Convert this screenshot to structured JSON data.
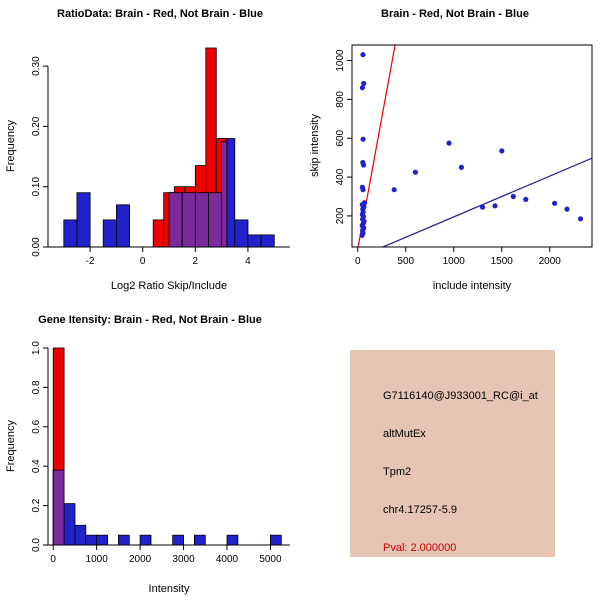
{
  "figure": {
    "background": "#ffffff"
  },
  "colors": {
    "brain": "#EE0000",
    "not_brain": "#2222CC",
    "overlap": "#7B2A9B",
    "fit_blue": "#1A1A8C"
  },
  "chart_data": [
    {
      "type": "histogram",
      "title": "RatioData: Brain - Red, Not Brain - Blue",
      "xlabel": "Log2 Ratio Skip/Include",
      "ylabel": "Frequency",
      "xlim": [
        -3.6,
        5.6
      ],
      "ylim": [
        0,
        0.335
      ],
      "xticks": [
        -2,
        0,
        2,
        4
      ],
      "yticks": [
        0,
        0.1,
        0.2,
        0.3
      ],
      "ytick_labels": [
        "0.00",
        "0.10",
        "0.20",
        "0.30"
      ],
      "series": [
        {
          "name": "not-brain-hist",
          "color": "#2222CC",
          "bin_start": -3.0,
          "bin_width": 0.5,
          "heights": [
            0.045,
            0.09,
            0,
            0.045,
            0.07,
            0,
            0,
            0,
            0.09,
            0.09,
            0.09,
            0.09,
            0.18,
            0.045,
            0.02,
            0.02
          ]
        },
        {
          "name": "brain-hist",
          "color": "#EE0000",
          "bin_start": 0.4,
          "bin_width": 0.4,
          "heights": [
            0.045,
            0.09,
            0.1,
            0.1,
            0.135,
            0.33,
            0.18
          ]
        },
        {
          "name": "overlap-hist",
          "color": "#7B2A9B",
          "bin_start": 1.0,
          "bin_width": 0.5,
          "heights": [
            0.09,
            0.09,
            0.09,
            0.09
          ]
        },
        {
          "name": "overlap-hist-tall",
          "color": "#7B2A9B",
          "bin_start": 3.0,
          "bin_width": 0.2,
          "heights": [
            0.175
          ]
        }
      ]
    },
    {
      "type": "scatter",
      "title": "Brain - Red, Not Brain - Blue",
      "xlabel": "include intensity",
      "ylabel": "skip intensity",
      "xlim": [
        -60,
        2440
      ],
      "ylim": [
        40,
        1080
      ],
      "xticks": [
        0,
        500,
        1000,
        1500,
        2000
      ],
      "yticks": [
        200,
        400,
        600,
        800,
        1000
      ],
      "points": {
        "color": "#2222CC",
        "x": [
          45,
          55,
          50,
          62,
          46,
          58,
          66,
          50,
          60,
          48,
          56,
          52,
          64,
          47,
          70,
          55,
          48,
          60,
          52,
          56,
          48,
          62,
          55,
          380,
          600,
          950,
          1080,
          1300,
          1430,
          1500,
          1620,
          1750,
          2050,
          2180,
          2320
        ],
        "y": [
          100,
          112,
          125,
          138,
          150,
          162,
          172,
          183,
          196,
          207,
          218,
          235,
          247,
          258,
          268,
          335,
          347,
          462,
          475,
          595,
          860,
          882,
          1030,
          335,
          425,
          575,
          450,
          245,
          252,
          535,
          300,
          285,
          265,
          235,
          185
        ]
      },
      "lines": [
        {
          "name": "brain-fit-line",
          "color": "#EE0000",
          "slope": 2.7,
          "intercept": 30
        },
        {
          "name": "not-brain-fit-line",
          "color": "#1A1A8C",
          "slope": 0.21,
          "intercept": -15
        }
      ]
    },
    {
      "type": "histogram",
      "title": "Gene Itensity: Brain - Red, Not Brain - Blue",
      "xlabel": "Intensity",
      "ylabel": "Frequency",
      "xlim": [
        -120,
        5450
      ],
      "ylim": [
        0,
        1.0
      ],
      "xticks": [
        0,
        1000,
        2000,
        3000,
        4000,
        5000
      ],
      "yticks": [
        0,
        0.2,
        0.4,
        0.6,
        0.8,
        1.0
      ],
      "ytick_labels": [
        "0.0",
        "0.2",
        "0.4",
        "0.6",
        "0.8",
        "1.0"
      ],
      "series": [
        {
          "name": "not-brain-hist",
          "color": "#2222CC",
          "bin_start": 0,
          "bin_width": 250,
          "heights": [
            0.38,
            0.21,
            0.1,
            0.05,
            0.05,
            0,
            0.05,
            0,
            0.05,
            0,
            0,
            0.05,
            0,
            0.05,
            0,
            0,
            0.05,
            0,
            0,
            0,
            0.05
          ]
        },
        {
          "name": "brain-hist",
          "color": "#EE0000",
          "bin_start": 0,
          "bin_width": 250,
          "heights": [
            1.0
          ]
        },
        {
          "name": "overlap-hist",
          "color": "#7B2A9B",
          "bin_start": 0,
          "bin_width": 250,
          "heights": [
            0.38
          ]
        }
      ]
    }
  ],
  "info_panel": {
    "background": "#E6C5B5",
    "text_color": "#000000",
    "pval_color": "#CC0000",
    "lines": [
      "G7116140@J933001_RC@i_at",
      "altMutEx",
      "Tpm2",
      "chr4.17257-5.9",
      "Pval: 2.000000"
    ]
  }
}
